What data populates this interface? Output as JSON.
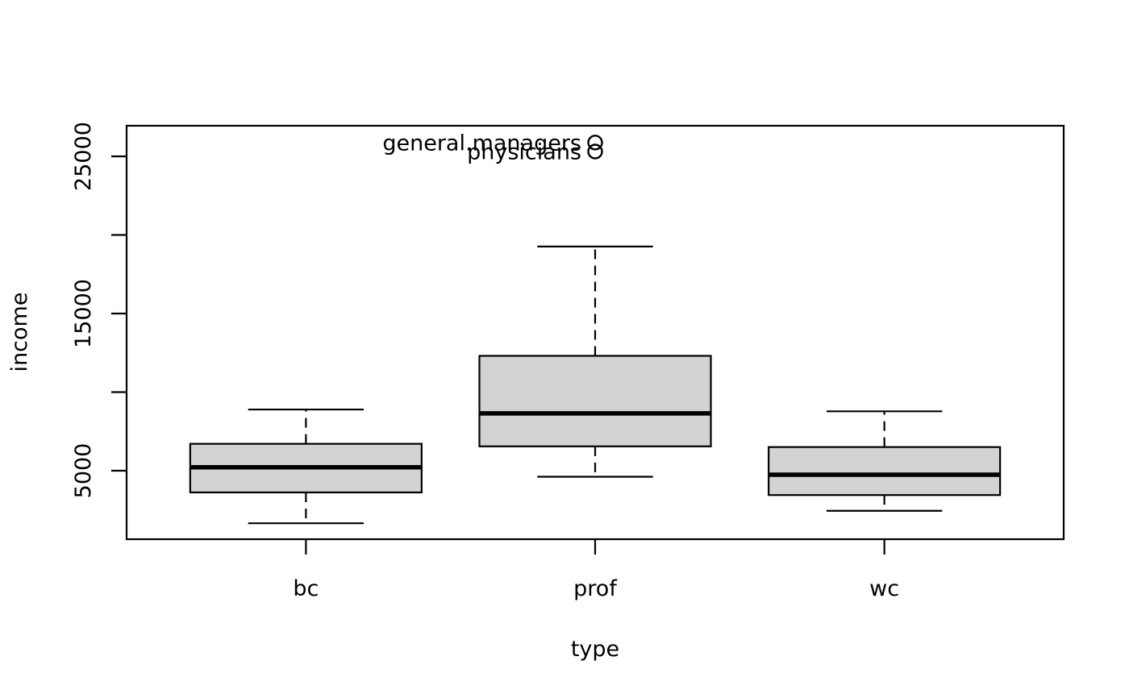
{
  "figure": {
    "background": "#ffffff",
    "box_fill": "#d3d3d3",
    "line_color": "#000000"
  },
  "chart_data": {
    "type": "boxplot",
    "title": "",
    "xlabel": "type",
    "ylabel": "income",
    "categories": [
      "bc",
      "prof",
      "wc"
    ],
    "y_ticks": [
      {
        "value": 5000,
        "label": "5000"
      },
      {
        "value": 10000,
        "label": ""
      },
      {
        "value": 15000,
        "label": "15000"
      },
      {
        "value": 20000,
        "label": ""
      },
      {
        "value": 25000,
        "label": "25000"
      }
    ],
    "ylim": [
      640,
      26950
    ],
    "grid": false,
    "legend": null,
    "boxes": [
      {
        "category": "bc",
        "whisker_low": 1656,
        "q1": 3618,
        "median": 5217,
        "q3": 6710,
        "whisker_high": 8895
      },
      {
        "category": "prof",
        "whisker_low": 4614,
        "q1": 6548,
        "median": 8645,
        "q3": 12308,
        "whisker_high": 19263
      },
      {
        "category": "wc",
        "whisker_low": 2448,
        "q1": 3450,
        "median": 4741,
        "q3": 6504,
        "whisker_high": 8780
      }
    ],
    "outliers": [
      {
        "category": "prof",
        "label": "general.managers",
        "value": 25879
      },
      {
        "category": "prof",
        "label": "physicians",
        "value": 25308
      }
    ]
  }
}
